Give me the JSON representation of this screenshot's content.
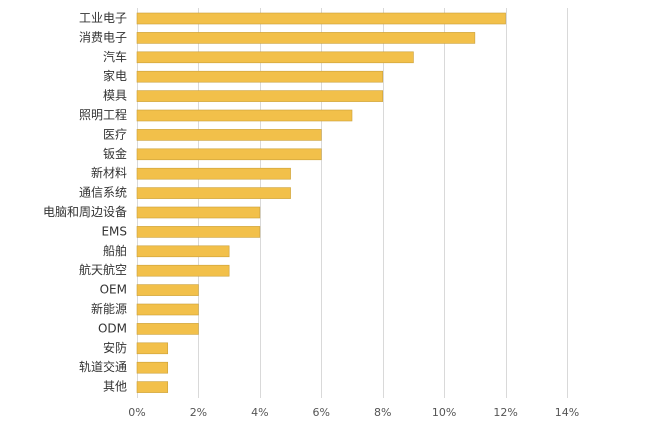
{
  "chart_data": {
    "type": "bar",
    "orientation": "horizontal",
    "title": "",
    "xlabel": "",
    "ylabel": "",
    "categories": [
      "工业电子",
      "消费电子",
      "汽车",
      "家电",
      "模具",
      "照明工程",
      "医疗",
      "钣金",
      "新材料",
      "通信系统",
      "电脑和周边设备",
      "EMS",
      "船舶",
      "航天航空",
      "OEM",
      "新能源",
      "ODM",
      "安防",
      "轨道交通",
      "其他"
    ],
    "values": [
      12,
      11,
      9,
      8,
      8,
      7,
      6,
      6,
      5,
      5,
      4,
      4,
      3,
      3,
      2,
      2,
      2,
      1,
      1,
      1
    ],
    "value_unit": "%",
    "xlim": [
      0,
      14
    ],
    "x_ticks": [
      0,
      2,
      4,
      6,
      8,
      10,
      12,
      14
    ],
    "x_tick_labels": [
      "0%",
      "2%",
      "4%",
      "6%",
      "8%",
      "10%",
      "12%",
      "14%"
    ],
    "grid": "vertical",
    "legend": "none",
    "bar_color": "#f2c04a",
    "bar_edge_color": "#caa03a",
    "grid_color": "#d9d9d9"
  }
}
